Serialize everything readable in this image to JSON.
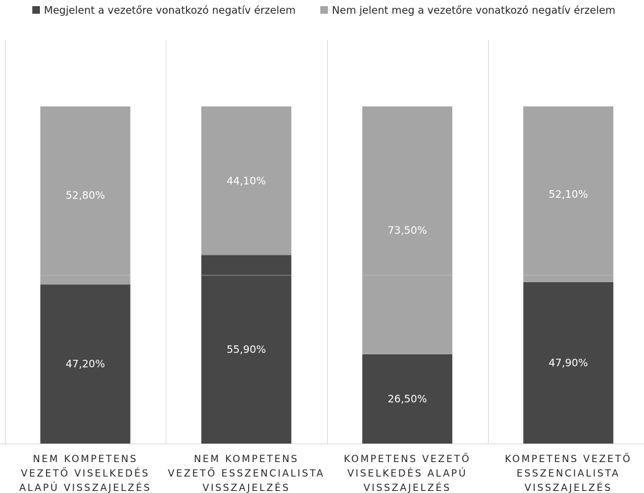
{
  "chart_data": {
    "type": "bar",
    "stacked": true,
    "percent_stacked": true,
    "categories": [
      [
        "NEM KOMPETENS",
        "VEZETŐ VISELKEDÉS",
        "ALAPÚ VISSZAJELZÉS"
      ],
      [
        "NEM KOMPETENS",
        "VEZETŐ ESSZENCIALISTA",
        "VISSZAJELZÉS"
      ],
      [
        "KOMPETENS VEZETŐ",
        "VISELKEDÉS ALAPÚ",
        "VISSZAJELZÉS"
      ],
      [
        "KOMPETENS VEZETŐ",
        "ESSZENCIALISTA",
        "VISSZAJELZÉS"
      ]
    ],
    "series": [
      {
        "name": "Megjelent a vezetőre vonatkozó negatív érzelem",
        "color": "#474747",
        "values": [
          47.2,
          55.9,
          26.5,
          47.9
        ],
        "labels": [
          "47,20%",
          "55,90%",
          "26,50%",
          "47,90%"
        ]
      },
      {
        "name": "Nem jelent meg a vezetőre vonatkozó negatív érzelem",
        "color": "#a5a5a5",
        "values": [
          52.8,
          44.1,
          73.5,
          52.1
        ],
        "labels": [
          "52,80%",
          "44,10%",
          "73,50%",
          "52,10%"
        ]
      }
    ],
    "ylim": [
      0,
      100
    ],
    "legend_position": "top",
    "grid": false,
    "category_separators": true,
    "title": "",
    "xlabel": "",
    "ylabel": ""
  }
}
